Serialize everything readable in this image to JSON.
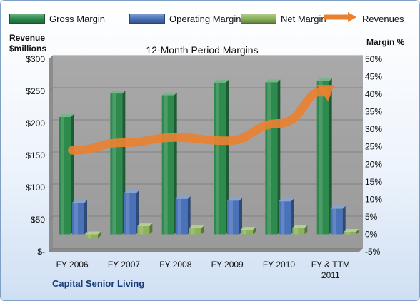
{
  "chart_data": {
    "type": "bar",
    "title": "12-Month Period Margins",
    "company": "Capital Senior Living",
    "left_axis": {
      "title_lines": [
        "Revenue",
        "$millions"
      ],
      "range": [
        0,
        300
      ],
      "ticks": [
        {
          "value": 0,
          "label": "$-"
        },
        {
          "value": 50,
          "label": "$50"
        },
        {
          "value": 100,
          "label": "$100"
        },
        {
          "value": 150,
          "label": "$150"
        },
        {
          "value": 200,
          "label": "$200"
        },
        {
          "value": 250,
          "label": "$250"
        },
        {
          "value": 300,
          "label": "$300"
        }
      ]
    },
    "right_axis": {
      "title": "Margin %",
      "range": [
        -5,
        50
      ],
      "ticks": [
        {
          "value": -5,
          "label": "-5%"
        },
        {
          "value": 0,
          "label": "0%"
        },
        {
          "value": 5,
          "label": "5%"
        },
        {
          "value": 10,
          "label": "10%"
        },
        {
          "value": 15,
          "label": "15%"
        },
        {
          "value": 20,
          "label": "20%"
        },
        {
          "value": 25,
          "label": "25%"
        },
        {
          "value": 30,
          "label": "30%"
        },
        {
          "value": 35,
          "label": "35%"
        },
        {
          "value": 40,
          "label": "40%"
        },
        {
          "value": 45,
          "label": "45%"
        },
        {
          "value": 50,
          "label": "50%"
        }
      ]
    },
    "categories": [
      [
        "FY 2006"
      ],
      [
        "FY 2007"
      ],
      [
        "FY 2008"
      ],
      [
        "FY 2009"
      ],
      [
        "FY 2010"
      ],
      [
        "FY & TTM",
        "2011"
      ]
    ],
    "series": [
      {
        "name": "Gross Margin",
        "axis": "right",
        "kind": "bar",
        "color": "#2e8b4e",
        "values": [
          33.5,
          40.2,
          39.7,
          43.3,
          43.4,
          43.7
        ]
      },
      {
        "name": "Operating Margin",
        "axis": "right",
        "kind": "bar",
        "color": "#4a72b8",
        "values": [
          9.0,
          11.7,
          10.1,
          9.6,
          9.4,
          7.3
        ]
      },
      {
        "name": "Net Margin",
        "axis": "right",
        "kind": "bar",
        "color": "#8bb35a",
        "values": [
          -1.2,
          2.3,
          1.7,
          1.3,
          1.8,
          0.7
        ]
      },
      {
        "name": "Revenues",
        "axis": "left",
        "kind": "line",
        "color": "#e98132",
        "values": [
          158,
          170,
          178,
          173,
          200,
          256
        ]
      }
    ],
    "grid": true,
    "legend": "top"
  }
}
